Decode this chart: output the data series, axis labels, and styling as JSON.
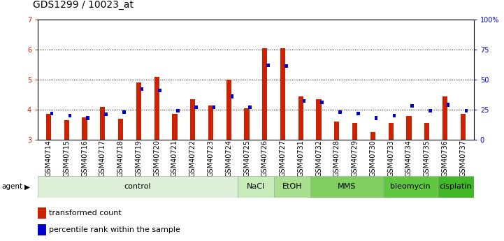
{
  "title": "GDS1299 / 10023_at",
  "samples": [
    "GSM40714",
    "GSM40715",
    "GSM40716",
    "GSM40717",
    "GSM40718",
    "GSM40719",
    "GSM40720",
    "GSM40721",
    "GSM40722",
    "GSM40723",
    "GSM40724",
    "GSM40725",
    "GSM40726",
    "GSM40727",
    "GSM40731",
    "GSM40732",
    "GSM40728",
    "GSM40729",
    "GSM40730",
    "GSM40733",
    "GSM40734",
    "GSM40735",
    "GSM40736",
    "GSM40737"
  ],
  "red_values": [
    3.85,
    3.65,
    3.75,
    4.1,
    3.7,
    4.9,
    5.1,
    3.85,
    4.35,
    4.15,
    5.0,
    4.05,
    6.05,
    6.05,
    4.45,
    4.35,
    3.6,
    3.55,
    3.25,
    3.55,
    3.8,
    3.55,
    4.45,
    3.85
  ],
  "blue_pct": [
    22,
    20,
    18,
    21,
    23,
    42,
    41,
    24,
    27,
    27,
    36,
    27,
    62,
    61,
    32,
    31,
    23,
    22,
    18,
    20,
    28,
    24,
    29,
    24
  ],
  "agent_groups": [
    {
      "label": "control",
      "start": 0,
      "end": 11,
      "color": "#dff0d8"
    },
    {
      "label": "NaCl",
      "start": 11,
      "end": 13,
      "color": "#c8edba"
    },
    {
      "label": "EtOH",
      "start": 13,
      "end": 15,
      "color": "#a8e090"
    },
    {
      "label": "MMS",
      "start": 15,
      "end": 19,
      "color": "#80d060"
    },
    {
      "label": "bleomycin",
      "start": 19,
      "end": 22,
      "color": "#60c840"
    },
    {
      "label": "cisplatin",
      "start": 22,
      "end": 24,
      "color": "#40b828"
    }
  ],
  "ylim_left": [
    3,
    7
  ],
  "ylim_right": [
    0,
    100
  ],
  "yticks_left": [
    3,
    4,
    5,
    6,
    7
  ],
  "yticks_right": [
    0,
    25,
    50,
    75,
    100
  ],
  "ytick_labels_right": [
    "0",
    "25",
    "50",
    "75",
    "100%"
  ],
  "red_color": "#cc2200",
  "blue_color": "#0000cc",
  "bg_color": "#ffffff",
  "title_fontsize": 10,
  "tick_fontsize": 7,
  "legend_fontsize": 8,
  "agent_fontsize": 8
}
